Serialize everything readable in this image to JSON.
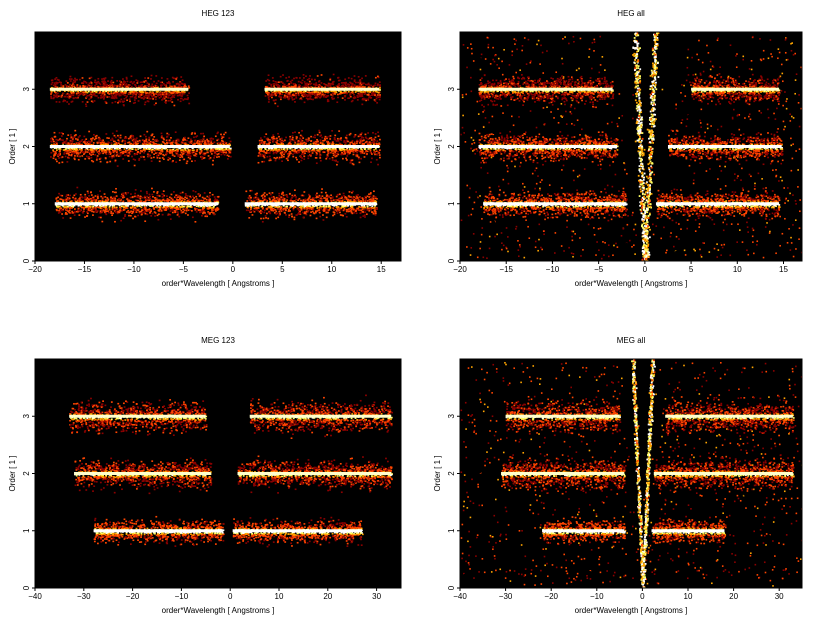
{
  "chart_data": [
    {
      "type": "heatmap",
      "title": "HEG 123",
      "xlabel": "order*Wavelength [ Angstroms ]",
      "ylabel": "Order [ 1 ]",
      "xlim": [
        -20,
        17
      ],
      "ylim": [
        0,
        4
      ],
      "xticks": [
        -20,
        -15,
        -10,
        -5,
        0,
        5,
        10,
        15
      ],
      "yticks": [
        0,
        1,
        2,
        3
      ],
      "colormap": [
        "#000000",
        "#8b0000",
        "#ff4500",
        "#ffa500",
        "#ffff66",
        "#ffffff"
      ],
      "bands": [
        {
          "order": 1,
          "x_ranges": [
            [
              -18,
              -1.5
            ],
            [
              1.2,
              14.5
            ]
          ],
          "intensity": 1.0,
          "spread": 0.1
        },
        {
          "order": 2,
          "x_ranges": [
            [
              -18.5,
              -0.3
            ],
            [
              2.5,
              14.8
            ]
          ],
          "intensity": 0.95,
          "spread": 0.11
        },
        {
          "order": 3,
          "x_ranges": [
            [
              -18.5,
              -4.5
            ],
            [
              3.2,
              14.8
            ]
          ],
          "intensity": 0.75,
          "spread": 0.1
        }
      ],
      "zero_order_wedge": false
    },
    {
      "type": "heatmap",
      "title": "HEG all",
      "xlabel": "order*Wavelength [ Angstroms ]",
      "ylabel": "Order [ 1 ]",
      "xlim": [
        -20,
        17
      ],
      "ylim": [
        0,
        4
      ],
      "xticks": [
        -20,
        -15,
        -10,
        -5,
        0,
        5,
        10,
        15
      ],
      "yticks": [
        0,
        1,
        2,
        3
      ],
      "colormap": [
        "#000000",
        "#8b0000",
        "#ff4500",
        "#ffa500",
        "#ffff66",
        "#ffffff"
      ],
      "bands": [
        {
          "order": 1,
          "x_ranges": [
            [
              -17.5,
              -2.0
            ],
            [
              1.2,
              14.5
            ]
          ],
          "intensity": 1.0,
          "spread": 0.1
        },
        {
          "order": 2,
          "x_ranges": [
            [
              -18.0,
              -3.0
            ],
            [
              2.5,
              14.8
            ]
          ],
          "intensity": 0.95,
          "spread": 0.1
        },
        {
          "order": 3,
          "x_ranges": [
            [
              -18.0,
              -3.5
            ],
            [
              5.0,
              14.5
            ]
          ],
          "intensity": 0.8,
          "spread": 0.1
        }
      ],
      "zero_order_wedge": true
    },
    {
      "type": "heatmap",
      "title": "MEG 123",
      "xlabel": "order*Wavelength [ Angstroms ]",
      "ylabel": "Order [ 1 ]",
      "xlim": [
        -40,
        35
      ],
      "ylim": [
        0,
        4
      ],
      "xticks": [
        -40,
        -30,
        -20,
        -10,
        0,
        10,
        20,
        30
      ],
      "yticks": [
        0,
        1,
        2,
        3
      ],
      "colormap": [
        "#000000",
        "#8b0000",
        "#ff4500",
        "#ffa500",
        "#ffff66",
        "#ffffff"
      ],
      "bands": [
        {
          "order": 1,
          "x_ranges": [
            [
              -28,
              -1.5
            ],
            [
              0.5,
              27
            ]
          ],
          "intensity": 1.0,
          "spread": 0.09
        },
        {
          "order": 2,
          "x_ranges": [
            [
              -32,
              -4
            ],
            [
              1.5,
              33
            ]
          ],
          "intensity": 0.9,
          "spread": 0.11
        },
        {
          "order": 3,
          "x_ranges": [
            [
              -33,
              -5
            ],
            [
              4,
              33
            ]
          ],
          "intensity": 0.9,
          "spread": 0.12
        }
      ],
      "zero_order_wedge": false
    },
    {
      "type": "heatmap",
      "title": "MEG all",
      "xlabel": "order*Wavelength [ Angstroms ]",
      "ylabel": "Order [ 1 ]",
      "xlim": [
        -40,
        35
      ],
      "ylim": [
        0,
        4
      ],
      "xticks": [
        -40,
        -30,
        -20,
        -10,
        0,
        10,
        20,
        30
      ],
      "yticks": [
        0,
        1,
        2,
        3
      ],
      "colormap": [
        "#000000",
        "#8b0000",
        "#ff4500",
        "#ffa500",
        "#ffff66",
        "#ffffff"
      ],
      "bands": [
        {
          "order": 1,
          "x_ranges": [
            [
              -22,
              -4
            ],
            [
              2,
              18
            ]
          ],
          "intensity": 1.0,
          "spread": 0.09
        },
        {
          "order": 2,
          "x_ranges": [
            [
              -31,
              -4
            ],
            [
              2.5,
              33
            ]
          ],
          "intensity": 0.9,
          "spread": 0.11
        },
        {
          "order": 3,
          "x_ranges": [
            [
              -30,
              -5
            ],
            [
              5,
              33
            ]
          ],
          "intensity": 0.9,
          "spread": 0.12
        }
      ],
      "zero_order_wedge": true
    }
  ]
}
